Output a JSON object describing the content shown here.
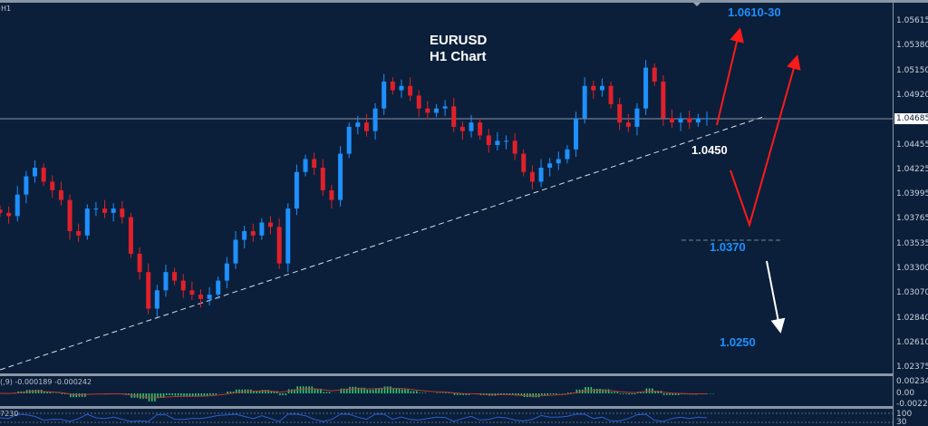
{
  "timeframe_label": "H1",
  "title": {
    "symbol": "EURUSD",
    "subtitle": "H1 Chart"
  },
  "colors": {
    "background": "#0b1f3a",
    "bull": "#1e90ff",
    "bear": "#e0202a",
    "histogram": "#2ecc71",
    "signal": "#c0392b",
    "arrow_up": "#ff1a1a",
    "arrow_down": "#ffffff",
    "target_text": "#1e90ff"
  },
  "chart_data": {
    "type": "candlestick",
    "title": "EURUSD H1 Chart",
    "closes": [
      1.0381,
      1.0378,
      1.0398,
      1.0415,
      1.0423,
      1.041,
      1.0402,
      1.0393,
      1.0364,
      1.036,
      1.0385,
      1.0385,
      1.0381,
      1.0385,
      1.0377,
      1.0343,
      1.0326,
      1.0292,
      1.0309,
      1.0326,
      1.0318,
      1.0309,
      1.0305,
      1.0301,
      1.0305,
      1.0318,
      1.0334,
      1.0356,
      1.0364,
      1.036,
      1.0372,
      1.0368,
      1.0334,
      1.0385,
      1.0419,
      1.0431,
      1.0423,
      1.0402,
      1.0393,
      1.0436,
      1.0461,
      1.0465,
      1.0457,
      1.0478,
      1.0503,
      1.0495,
      1.0499,
      1.049,
      1.0478,
      1.0474,
      1.0478,
      1.048,
      1.0461,
      1.0457,
      1.0465,
      1.0453,
      1.0444,
      1.0448,
      1.0448,
      1.0436,
      1.0419,
      1.041,
      1.0423,
      1.0427,
      1.0431,
      1.044,
      1.0469,
      1.0499,
      1.0495,
      1.0499,
      1.0482,
      1.0465,
      1.0461,
      1.0478,
      1.0516,
      1.0503,
      1.0469,
      1.0465,
      1.0469,
      1.0465,
      1.0469,
      1.0469
    ],
    "current_price": "1.04685",
    "yticks": [
      "1.05615",
      "1.05380",
      "1.05150",
      "1.04920",
      "1.04685",
      "1.04455",
      "1.04225",
      "1.03995",
      "1.03765",
      "1.03535",
      "1.03300",
      "1.03070",
      "1.02840",
      "1.02610",
      "1.02375"
    ],
    "ylim": [
      1.0226,
      1.0572
    ],
    "annotations": {
      "target_high": "1.0610-30",
      "support": "1.0450",
      "level_mid": "1.0370",
      "target_low": "1.0250"
    }
  },
  "macd": {
    "label": "(,9) -0.000189 -0.000242",
    "ticks": [
      "0.002341",
      "0.00",
      "-0.00225"
    ]
  },
  "lower": {
    "label": "7230",
    "ticks": [
      "100",
      "30"
    ]
  }
}
